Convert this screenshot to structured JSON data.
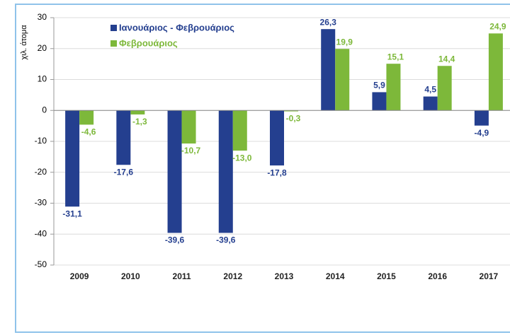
{
  "chart_data": {
    "type": "bar",
    "ylabel": "χιλ. άτομα",
    "categories": [
      "2009",
      "2010",
      "2011",
      "2012",
      "2013",
      "2014",
      "2015",
      "2016",
      "2017"
    ],
    "series": [
      {
        "name": "Ιανουάριος - Φεβρουάριος",
        "color": "#243f8f",
        "values": [
          -31.1,
          -17.6,
          -39.6,
          -39.6,
          -17.8,
          26.3,
          5.9,
          4.5,
          -4.9
        ],
        "value_labels": [
          "-31,1",
          "-17,6",
          "-39,6",
          "-39,6",
          "-17,8",
          "26,3",
          "5,9",
          "4,5",
          "-4,9"
        ]
      },
      {
        "name": "Φεβρουάριος",
        "color": "#7db83a",
        "values": [
          -4.6,
          -1.3,
          -10.7,
          -13.0,
          -0.3,
          19.9,
          15.1,
          14.4,
          24.9
        ],
        "value_labels": [
          "-4,6",
          "-1,3",
          "-10,7",
          "-13,0",
          "-0,3",
          "19,9",
          "15,1",
          "14,4",
          "24,9"
        ]
      }
    ],
    "ylim": [
      -50,
      30
    ],
    "yticks": [
      -50,
      -40,
      -30,
      -20,
      -10,
      0,
      10,
      20,
      30
    ],
    "grid": true,
    "legend": "upper left"
  }
}
